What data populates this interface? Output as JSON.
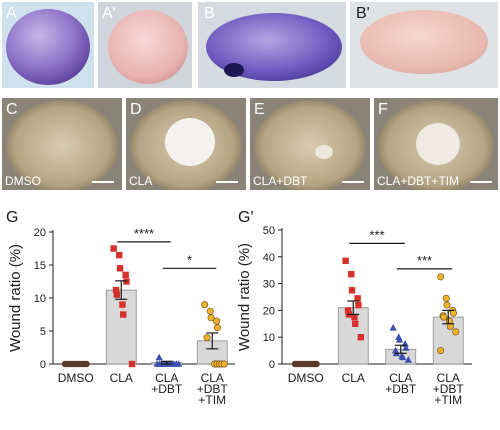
{
  "panels": [
    {
      "label": "A",
      "treatment": ""
    },
    {
      "label": "A'",
      "treatment": ""
    },
    {
      "label": "B",
      "treatment": ""
    },
    {
      "label": "B'",
      "treatment": ""
    },
    {
      "label": "C",
      "treatment": "DMSO"
    },
    {
      "label": "D",
      "treatment": "CLA"
    },
    {
      "label": "E",
      "treatment": "CLA+DBT"
    },
    {
      "label": "F",
      "treatment": "CLA+DBT+TIM"
    }
  ],
  "colors": {
    "bar_fill": "#d9d9d9",
    "bar_stroke": "#8c8c8c",
    "dmso": "#5a3a2a",
    "cla": "#d6302a",
    "cla_dbt": "#3a4fb0",
    "cla_dbt_tim": "#f0b22e"
  },
  "chart_data": [
    {
      "panel_label": "G",
      "type": "bar",
      "ylabel": "Wound ratio (%)",
      "ylim": [
        0,
        20
      ],
      "yticks": [
        0,
        5,
        10,
        15,
        20
      ],
      "categories": [
        "DMSO",
        "CLA",
        "CLA\n+DBT",
        "CLA\n+DBT\n+TIM"
      ],
      "values": [
        0,
        11.2,
        0.2,
        3.5
      ],
      "errors": [
        0,
        1.4,
        0.2,
        1.2
      ],
      "points": [
        [
          0,
          0,
          0,
          0,
          0,
          0,
          0,
          0,
          0,
          0
        ],
        [
          17.5,
          16.5,
          14.5,
          13.5,
          12.5,
          11.2,
          10.5,
          9,
          7.5,
          0
        ],
        [
          1,
          0,
          0,
          0,
          0,
          0,
          0,
          0,
          0,
          0,
          0
        ],
        [
          9,
          8,
          7,
          6.5,
          5.5,
          4,
          0,
          0,
          0,
          0,
          0
        ]
      ],
      "significance": [
        {
          "from": 1,
          "to": 2,
          "y": 18.5,
          "label": "****"
        },
        {
          "from": 2,
          "to": 3,
          "y": 14.5,
          "label": "*"
        }
      ]
    },
    {
      "panel_label": "G'",
      "type": "bar",
      "ylabel": "Wound ratio (%)",
      "ylim": [
        0,
        50
      ],
      "yticks": [
        0,
        10,
        20,
        30,
        40,
        50
      ],
      "categories": [
        "DMSO",
        "CLA",
        "CLA\n+DBT",
        "CLA\n+DBT\n+TIM"
      ],
      "values": [
        0,
        21,
        5.5,
        17.5
      ],
      "errors": [
        0,
        2.5,
        1.5,
        2.5
      ],
      "points": [
        [
          0,
          0,
          0,
          0,
          0,
          0,
          0,
          0,
          0,
          0
        ],
        [
          38.5,
          33.5,
          27.5,
          24.5,
          22,
          20,
          18.5,
          17.5,
          15,
          10
        ],
        [
          13.5,
          10,
          9,
          7.5,
          6,
          5,
          4,
          3,
          2.5,
          1.5
        ],
        [
          32.5,
          24.5,
          22,
          20,
          19,
          18,
          17.5,
          16,
          14,
          12,
          5
        ]
      ],
      "significance": [
        {
          "from": 1,
          "to": 2,
          "y": 45,
          "label": "***"
        },
        {
          "from": 2,
          "to": 3,
          "y": 35.5,
          "label": "***"
        }
      ]
    }
  ]
}
